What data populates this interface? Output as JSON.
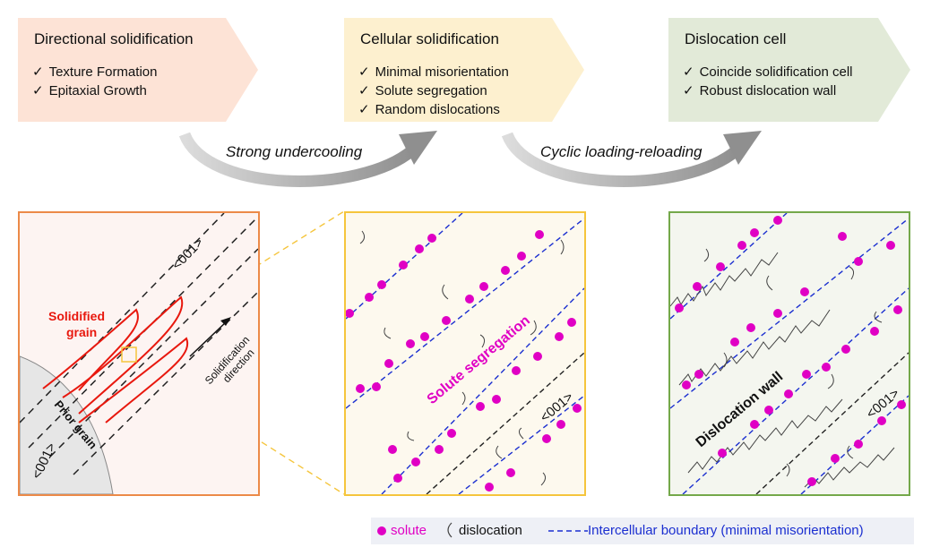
{
  "stages": [
    {
      "title": "Directional solidification",
      "fill": "#fde3d6",
      "items": [
        "Texture Formation",
        "Epitaxial Growth"
      ]
    },
    {
      "title": "Cellular solidification",
      "fill": "#fdf0cf",
      "items": [
        "Minimal misorientation",
        "Solute segregation",
        "Random dislocations"
      ]
    },
    {
      "title": "Dislocation cell",
      "fill": "#e2ead8",
      "items": [
        "Coincide solidification cell",
        "Robust dislocation wall"
      ]
    }
  ],
  "check_glyph": "✓",
  "transitions": [
    "Strong undercooling",
    "Cyclic loading-reloading"
  ],
  "panel1": {
    "border_color": "#ec8a48",
    "label_001_top": "<001>",
    "label_001_bottom": "<001>",
    "solidified_grain_line1": "Solidified",
    "solidified_grain_line2": "grain",
    "direction_line1": "Solidification",
    "direction_line2": "direction",
    "prior_grain": "Prior grain"
  },
  "panel2": {
    "border_color": "#f5c53c",
    "segregation_label": "Solute segregation",
    "label_001": "<001>"
  },
  "panel3": {
    "border_color": "#74a84a",
    "wall_label": "Dislocation wall",
    "label_001": "<001>"
  },
  "legend": {
    "solute_label": "solute",
    "dislocation_label": "dislocation",
    "boundary_label": "Intercellular boundary (minimal misorientation)"
  },
  "colors": {
    "solute": "#e000c4",
    "boundary": "#1b2fd0",
    "grain_outline": "#e8180e",
    "arrow_gray": "#9a9a9a"
  }
}
